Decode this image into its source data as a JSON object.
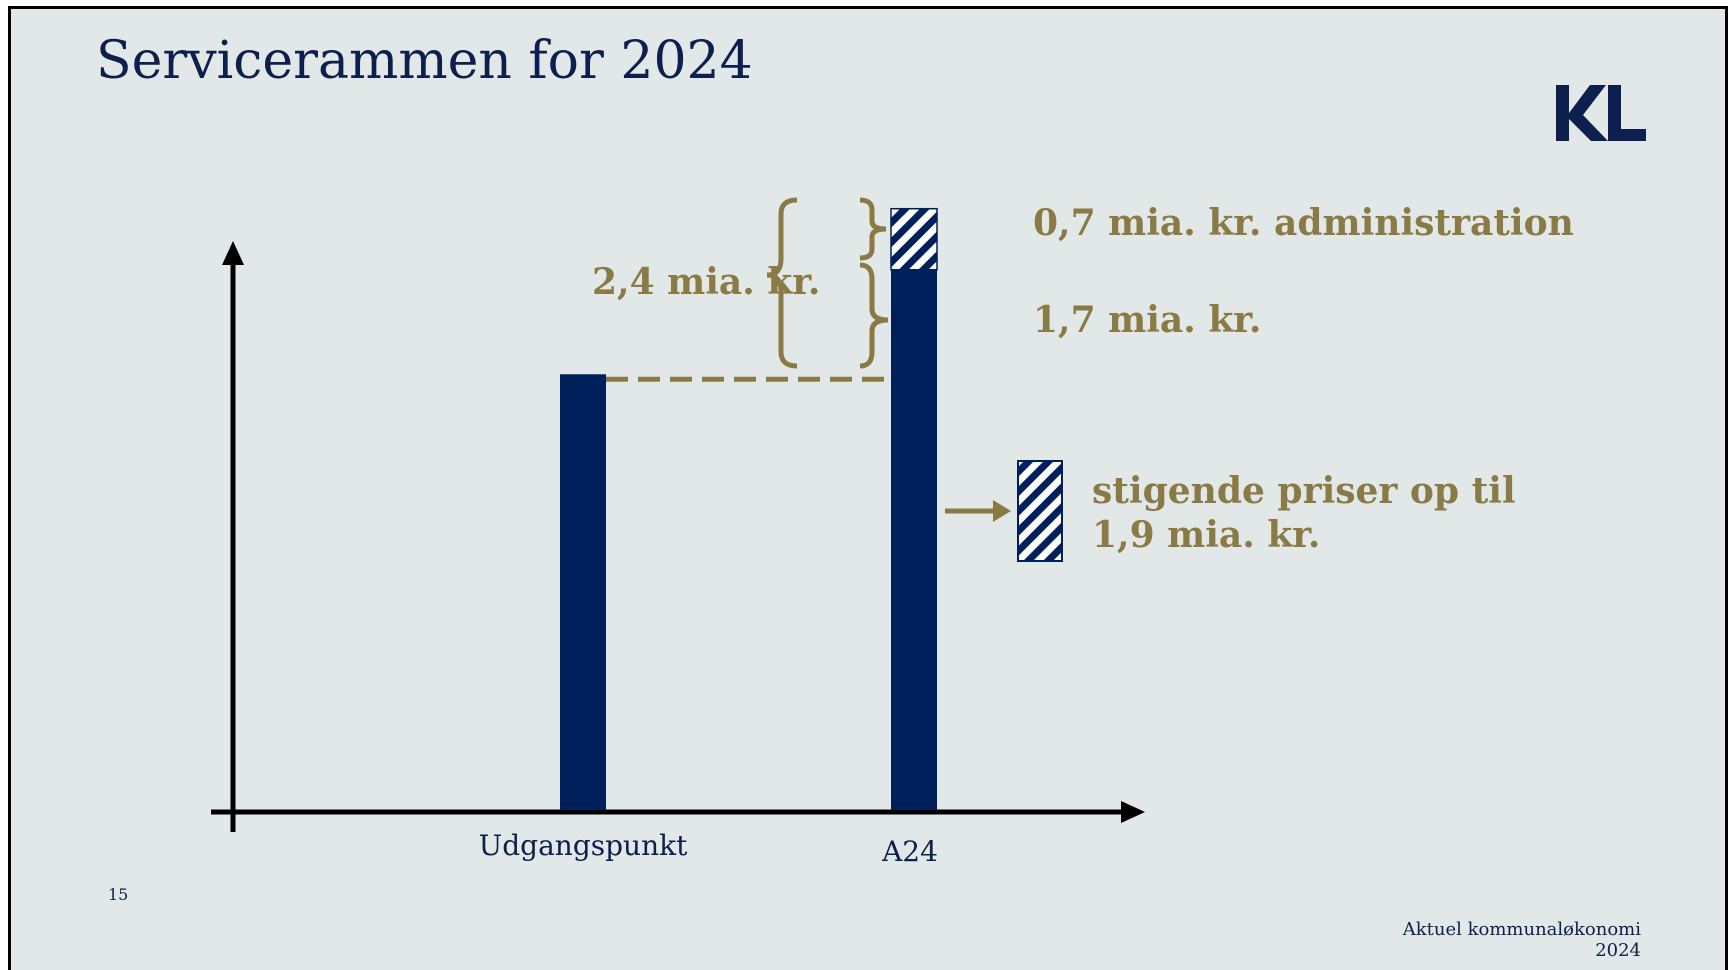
{
  "slide": {
    "title": "Servicerammen for 2024",
    "logo_text": "KL",
    "page_number": "15",
    "footer": "Aktuel kommunaløkonomi 2024"
  },
  "colors": {
    "background": "#e2e7e7",
    "bar": "#00205b",
    "accent_gold": "#8a7a46",
    "title": "#0c1f4e"
  },
  "chart_data": {
    "type": "bar",
    "title": "Servicerammen for 2024",
    "xlabel": "",
    "ylabel": "",
    "categories": [
      "Udgangspunkt",
      "A24"
    ],
    "series": [
      {
        "values": [
          100,
          124
        ]
      },
      {
        "pattern": "hatched",
        "values": [
          0,
          14
        ]
      }
    ],
    "ylim": [
      0,
      140
    ],
    "grid": false,
    "annotations": {
      "total": "2,4 mia. kr.",
      "admin": "0,7 mia. kr. administration",
      "core": "1,7 mia. kr.",
      "prices_line1": "stigende priser op til",
      "prices_line2": "1,9 mia. kr."
    }
  }
}
